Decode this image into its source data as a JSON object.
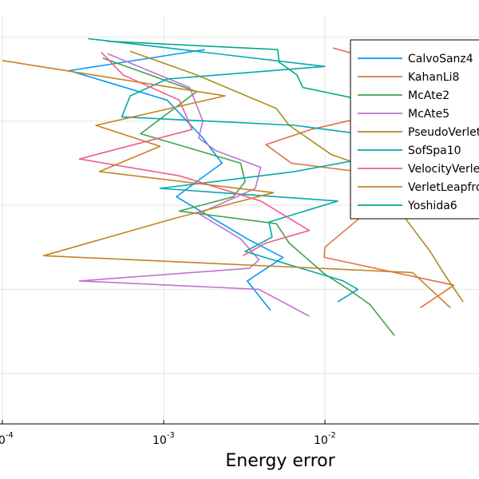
{
  "chart_data": {
    "type": "line",
    "title": "",
    "xlabel": "Energy error",
    "ylabel": "",
    "x_scale": "log10",
    "xlim": [
      0.0001,
      0.08
    ],
    "ylim": [
      0.4,
      5.25
    ],
    "x_ticks": [
      {
        "base": "10",
        "exp": "-4",
        "value": 0.0001
      },
      {
        "base": "10",
        "exp": "-3",
        "value": 0.001
      },
      {
        "base": "10",
        "exp": "-2",
        "value": 0.01
      }
    ],
    "grid": true,
    "legend_position": "top-right",
    "series": [
      {
        "name": "CalvoSanz4",
        "color": "#009AFA",
        "points": [
          [
            0.0018,
            4.85
          ],
          [
            0.00026,
            4.6
          ],
          [
            0.00105,
            4.25
          ],
          [
            0.00175,
            3.8
          ],
          [
            0.0023,
            3.5
          ],
          [
            0.0016,
            3.28
          ],
          [
            0.0012,
            3.1
          ],
          [
            0.0033,
            2.6
          ],
          [
            0.0055,
            2.38
          ],
          [
            0.0033,
            2.1
          ],
          [
            0.0046,
            1.75
          ]
        ]
      },
      {
        "name": "KahanLi8",
        "color": "#E36F47",
        "points": [
          [
            0.0112,
            4.87
          ],
          [
            0.045,
            4.55
          ],
          [
            0.04,
            4.35
          ],
          [
            0.0208,
            4.08
          ],
          [
            0.0082,
            3.9
          ],
          [
            0.0043,
            3.72
          ],
          [
            0.0062,
            3.5
          ],
          [
            0.0193,
            3.38
          ],
          [
            0.0235,
            3.1
          ],
          [
            0.019,
            2.95
          ],
          [
            0.01,
            2.5
          ],
          [
            0.0099,
            2.38
          ],
          [
            0.063,
            2.05
          ],
          [
            0.039,
            1.78
          ]
        ]
      },
      {
        "name": "McAte2",
        "color": "#3EA44E",
        "points": [
          [
            0.00042,
            4.75
          ],
          [
            0.0016,
            4.35
          ],
          [
            0.00072,
            3.85
          ],
          [
            0.003,
            3.5
          ],
          [
            0.0032,
            3.28
          ],
          [
            0.0027,
            3.1
          ],
          [
            0.00125,
            2.93
          ],
          [
            0.005,
            2.78
          ],
          [
            0.006,
            2.55
          ],
          [
            0.01,
            2.18
          ],
          [
            0.014,
            2.0
          ],
          [
            0.019,
            1.82
          ],
          [
            0.027,
            1.45
          ]
        ]
      },
      {
        "name": "McAte5",
        "color": "#C271D2",
        "points": [
          [
            0.00045,
            4.8
          ],
          [
            0.00145,
            4.4
          ],
          [
            0.00175,
            4.0
          ],
          [
            0.00165,
            3.8
          ],
          [
            0.0021,
            3.65
          ],
          [
            0.004,
            3.45
          ],
          [
            0.0037,
            3.2
          ],
          [
            0.00165,
            2.9
          ],
          [
            0.003,
            2.6
          ],
          [
            0.0039,
            2.35
          ],
          [
            0.0034,
            2.25
          ],
          [
            0.0003,
            2.1
          ],
          [
            0.0039,
            2.0
          ],
          [
            0.008,
            1.68
          ]
        ]
      },
      {
        "name": "PseudoVerlet",
        "color": "#AC8D18",
        "points": [
          [
            0.00062,
            4.83
          ],
          [
            0.0016,
            4.55
          ],
          [
            0.005,
            4.15
          ],
          [
            0.006,
            3.95
          ],
          [
            0.011,
            3.6
          ],
          [
            0.022,
            3.4
          ],
          [
            0.025,
            3.1
          ],
          [
            0.045,
            2.45
          ],
          [
            0.055,
            2.18
          ],
          [
            0.072,
            1.85
          ]
        ]
      },
      {
        "name": "SofSpa10",
        "color": "#00A9AD",
        "points": [
          [
            0.00034,
            4.98
          ],
          [
            0.01,
            4.65
          ],
          [
            0.00105,
            4.5
          ],
          [
            0.00062,
            4.3
          ],
          [
            0.00055,
            4.05
          ],
          [
            0.0065,
            3.95
          ],
          [
            0.026,
            3.8
          ],
          [
            0.033,
            3.65
          ],
          [
            0.0065,
            3.4
          ],
          [
            0.00095,
            3.2
          ],
          [
            0.012,
            3.05
          ],
          [
            0.0045,
            2.8
          ],
          [
            0.0047,
            2.62
          ],
          [
            0.0032,
            2.45
          ],
          [
            0.013,
            2.1
          ],
          [
            0.016,
            2.0
          ],
          [
            0.012,
            1.85
          ]
        ]
      },
      {
        "name": "VelocityVerlet",
        "color": "#ED5E93",
        "points": [
          [
            0.00041,
            4.82
          ],
          [
            0.00056,
            4.55
          ],
          [
            0.00125,
            4.25
          ],
          [
            0.0015,
            3.9
          ],
          [
            0.0003,
            3.55
          ],
          [
            0.00125,
            3.35
          ],
          [
            0.004,
            3.05
          ],
          [
            0.008,
            2.7
          ],
          [
            0.0043,
            2.55
          ],
          [
            0.0031,
            2.4
          ]
        ]
      },
      {
        "name": "VerletLeapfrog",
        "color": "#C68225",
        "points": [
          [
            0.0001,
            4.72
          ],
          [
            0.0024,
            4.3
          ],
          [
            0.00038,
            3.95
          ],
          [
            0.00095,
            3.7
          ],
          [
            0.0004,
            3.4
          ],
          [
            0.0048,
            3.15
          ],
          [
            0.0012,
            2.85
          ],
          [
            0.00018,
            2.4
          ],
          [
            0.035,
            2.2
          ],
          [
            0.06,
            1.78
          ]
        ]
      },
      {
        "name": "Yoshida6",
        "color": "#00A98D",
        "points": [
          [
            0.00044,
            4.95
          ],
          [
            0.0051,
            4.85
          ],
          [
            0.0052,
            4.7
          ],
          [
            0.0067,
            4.55
          ],
          [
            0.0073,
            4.4
          ],
          [
            0.023,
            4.2
          ],
          [
            0.028,
            4.05
          ]
        ]
      }
    ]
  }
}
